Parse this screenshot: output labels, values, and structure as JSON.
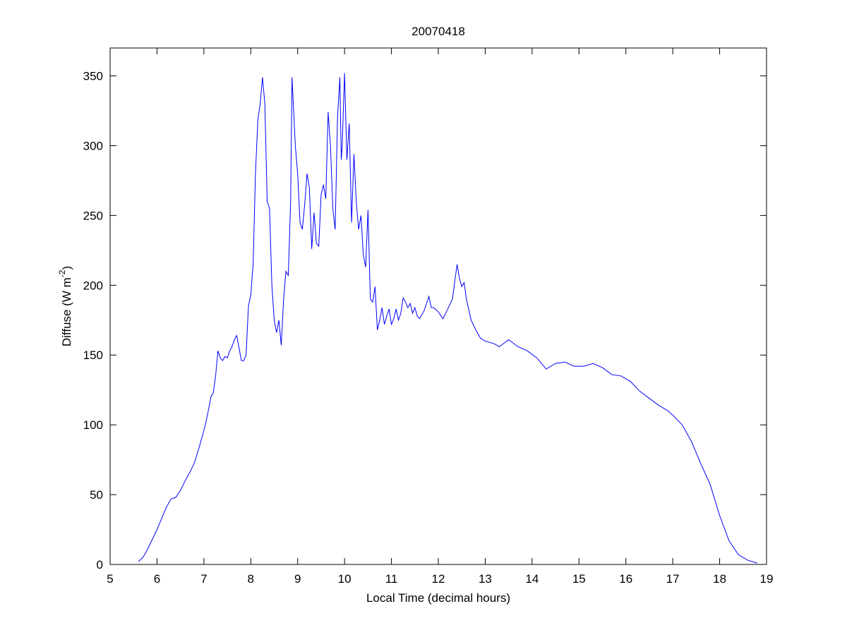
{
  "chart_data": {
    "type": "line",
    "title": "20070418",
    "xlabel": "Local Time (decimal hours)",
    "ylabel_parts": [
      "Diffuse (W m",
      "-2",
      ")"
    ],
    "xlim": [
      5,
      19
    ],
    "xticks": [
      5,
      6,
      7,
      8,
      9,
      10,
      11,
      12,
      13,
      14,
      15,
      16,
      17,
      18,
      19
    ],
    "ylim": [
      0,
      370
    ],
    "yticks": [
      0,
      50,
      100,
      150,
      200,
      250,
      300,
      350
    ],
    "grid": false,
    "series": [
      {
        "color": "#0000ff",
        "x": [
          5.6,
          5.7,
          5.8,
          5.9,
          6.0,
          6.1,
          6.2,
          6.3,
          6.4,
          6.5,
          6.6,
          6.7,
          6.8,
          6.9,
          7.0,
          7.05,
          7.1,
          7.15,
          7.2,
          7.25,
          7.3,
          7.35,
          7.4,
          7.45,
          7.5,
          7.55,
          7.6,
          7.65,
          7.7,
          7.75,
          7.8,
          7.85,
          7.9,
          7.95,
          8.0,
          8.05,
          8.1,
          8.15,
          8.2,
          8.25,
          8.3,
          8.35,
          8.4,
          8.45,
          8.5,
          8.55,
          8.6,
          8.65,
          8.7,
          8.75,
          8.8,
          8.85,
          8.88,
          8.95,
          9.0,
          9.05,
          9.1,
          9.15,
          9.2,
          9.25,
          9.3,
          9.35,
          9.4,
          9.45,
          9.5,
          9.55,
          9.6,
          9.65,
          9.7,
          9.75,
          9.8,
          9.85,
          9.9,
          9.93,
          9.95,
          10.0,
          10.05,
          10.1,
          10.15,
          10.2,
          10.25,
          10.3,
          10.35,
          10.4,
          10.45,
          10.5,
          10.55,
          10.6,
          10.65,
          10.7,
          10.75,
          10.8,
          10.85,
          10.9,
          10.95,
          11.0,
          11.05,
          11.1,
          11.15,
          11.2,
          11.25,
          11.3,
          11.35,
          11.4,
          11.45,
          11.5,
          11.55,
          11.6,
          11.7,
          11.8,
          11.85,
          11.9,
          12.0,
          12.1,
          12.2,
          12.3,
          12.4,
          12.45,
          12.5,
          12.55,
          12.6,
          12.7,
          12.8,
          12.9,
          13.0,
          13.2,
          13.3,
          13.5,
          13.7,
          13.9,
          14.1,
          14.3,
          14.5,
          14.7,
          14.9,
          15.1,
          15.3,
          15.5,
          15.7,
          15.9,
          16.1,
          16.3,
          16.5,
          16.7,
          16.9,
          17.0,
          17.2,
          17.4,
          17.6,
          17.8,
          18.0,
          18.2,
          18.4,
          18.6,
          18.8
        ],
        "values": [
          2,
          5,
          11,
          18,
          25,
          33,
          41,
          47,
          48,
          53,
          60,
          66,
          73,
          84,
          96,
          103,
          111,
          120,
          123,
          135,
          153,
          148,
          146,
          149,
          148,
          153,
          156,
          161,
          164,
          155,
          146,
          146,
          150,
          185,
          193,
          215,
          280,
          318,
          330,
          349,
          330,
          260,
          255,
          200,
          175,
          166,
          175,
          157,
          190,
          210,
          207,
          260,
          349,
          300,
          280,
          245,
          240,
          258,
          280,
          270,
          226,
          252,
          230,
          228,
          265,
          272,
          262,
          324,
          300,
          255,
          240,
          320,
          349,
          290,
          300,
          352,
          290,
          316,
          245,
          294,
          260,
          240,
          250,
          222,
          213,
          254,
          190,
          188,
          199,
          168,
          175,
          184,
          172,
          178,
          183,
          172,
          176,
          183,
          175,
          180,
          191,
          188,
          184,
          187,
          180,
          184,
          178,
          176,
          182,
          192,
          184,
          184,
          181,
          176,
          183,
          190,
          215,
          205,
          199,
          202,
          190,
          175,
          168,
          162,
          160,
          158,
          156,
          161,
          156,
          153,
          148,
          140,
          144,
          145,
          142,
          142,
          144,
          141,
          136,
          135,
          131,
          124,
          119,
          114,
          110,
          107,
          100,
          88,
          72,
          57,
          35,
          17,
          7,
          3,
          1
        ]
      }
    ]
  }
}
